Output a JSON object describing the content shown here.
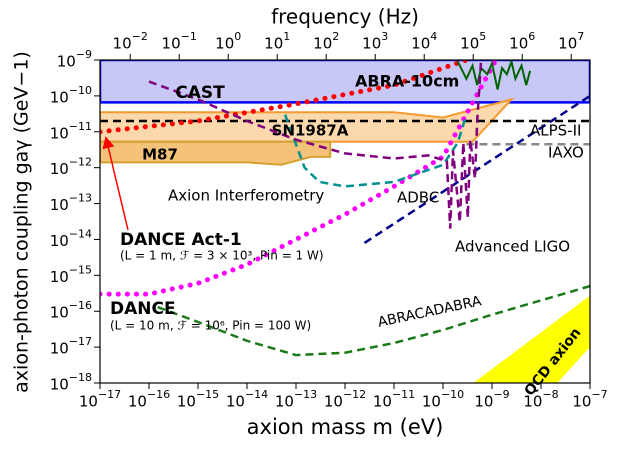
{
  "chart_data": {
    "type": "line",
    "xlabel": "axion mass m (eV)",
    "ylabel": "axion-photon coupling gaγ (GeV−1)",
    "x2label": "frequency (Hz)",
    "log": true,
    "xlim": [
      1e-17,
      1e-07
    ],
    "ylim": [
      1e-18,
      1e-09
    ],
    "x2lim": [
      0.002418,
      24180000.0
    ],
    "xticks": [
      {
        "value": 1e-17,
        "label": "10−17"
      },
      {
        "value": 1e-16,
        "label": "10−16"
      },
      {
        "value": 1e-15,
        "label": "10−15"
      },
      {
        "value": 1e-14,
        "label": "10−14"
      },
      {
        "value": 1e-13,
        "label": "10−13"
      },
      {
        "value": 1e-12,
        "label": "10−12"
      },
      {
        "value": 1e-11,
        "label": "10−11"
      },
      {
        "value": 1e-10,
        "label": "10−10"
      },
      {
        "value": 1e-09,
        "label": "10−9"
      },
      {
        "value": 1e-08,
        "label": "10−8"
      },
      {
        "value": 1e-07,
        "label": "10−7"
      }
    ],
    "yticks": [
      {
        "value": 1e-18,
        "label": "10−18"
      },
      {
        "value": 1e-17,
        "label": "10−17"
      },
      {
        "value": 1e-16,
        "label": "10−16"
      },
      {
        "value": 1e-15,
        "label": "10−15"
      },
      {
        "value": 1e-14,
        "label": "10−14"
      },
      {
        "value": 1e-13,
        "label": "10−13"
      },
      {
        "value": 1e-12,
        "label": "10−12"
      },
      {
        "value": 1e-11,
        "label": "10−11"
      },
      {
        "value": 1e-10,
        "label": "10−10"
      },
      {
        "value": 1e-09,
        "label": "10−9"
      }
    ],
    "x2ticks": [
      {
        "value": 0.01,
        "label": "10−2"
      },
      {
        "value": 0.1,
        "label": "10−1"
      },
      {
        "value": 1,
        "label": "100"
      },
      {
        "value": 10,
        "label": "101"
      },
      {
        "value": 100,
        "label": "102"
      },
      {
        "value": 1000,
        "label": "103"
      },
      {
        "value": 10000,
        "label": "104"
      },
      {
        "value": 100000,
        "label": "105"
      },
      {
        "value": 1000000,
        "label": "106"
      },
      {
        "value": 10000000,
        "label": "107"
      }
    ],
    "regions": [
      {
        "name": "CAST",
        "color": "#c8c8f6",
        "edge_color": "#0000ff",
        "x": [
          1e-17,
          1e-07,
          1e-07,
          1e-17
        ],
        "y": [
          6.6e-11,
          6.6e-11,
          1e-09,
          1e-09
        ]
      },
      {
        "name": "SN1987A",
        "color": "#fcd9ac",
        "edge_color": "#f59a30",
        "x": [
          1e-17,
          4e-10,
          2.5e-09,
          1e-10,
          1e-11,
          1e-17
        ],
        "y": [
          5.3e-12,
          5.3e-12,
          8e-11,
          2.5e-11,
          3.5e-11,
          3.5e-11
        ]
      },
      {
        "name": "M87",
        "color": "#f5c27a",
        "edge_color": "#d4a030",
        "x": [
          1e-17,
          1e-14,
          5e-14,
          2e-13,
          5e-13,
          5e-13,
          1e-17
        ],
        "y": [
          1.4e-12,
          1.4e-12,
          1.2e-12,
          2e-12,
          2e-12,
          5.3e-12,
          5.3e-12
        ]
      },
      {
        "name": "QCD axion",
        "color": "#ffff00",
        "edge_color": "#ffff00",
        "x": [
          4.5e-10,
          1e-07,
          1e-07,
          2e-08
        ],
        "y": [
          1e-18,
          2.5e-16,
          1.1e-17,
          1e-18
        ]
      }
    ],
    "series": [
      {
        "name": "ALPS-II",
        "color": "#000000",
        "style": "dashed",
        "linewidth": 2.5,
        "x": [
          1e-17,
          1e-07
        ],
        "y": [
          2e-11,
          2e-11
        ]
      },
      {
        "name": "IAXO",
        "color": "#888888",
        "style": "dashed",
        "linewidth": 2.5,
        "x": [
          3e-10,
          1e-07
        ],
        "y": [
          4.5e-12,
          4.5e-12
        ]
      },
      {
        "name": "DANCE Act-1",
        "color": "#ff0000",
        "style": "dotted",
        "linewidth": 5,
        "x": [
          1e-17,
          1e-15,
          1e-13,
          1e-11,
          3e-10
        ],
        "y": [
          1e-11,
          2e-11,
          6e-11,
          2e-10,
          1e-09
        ]
      },
      {
        "name": "DANCE",
        "color": "#ff00ff",
        "style": "dotted",
        "linewidth": 5,
        "x": [
          1e-17,
          1e-16,
          1e-15,
          1e-14,
          1e-13,
          1e-12,
          1e-11,
          1e-10,
          1.2e-09
        ],
        "y": [
          3e-16,
          3e-16,
          6e-16,
          2e-15,
          1e-14,
          5e-14,
          3e-13,
          2e-12,
          1e-09
        ]
      },
      {
        "name": "ABRA-10cm",
        "color": "#006400",
        "style": "solid",
        "linewidth": 2,
        "x": [
          2e-10,
          3e-10,
          4e-10,
          5e-10,
          6e-10,
          8e-10,
          1e-09,
          1.3e-09,
          1.6e-09,
          2e-09,
          2.5e-09,
          3e-09,
          4e-09,
          5e-09,
          6e-09
        ],
        "y": [
          9e-10,
          3e-10,
          7e-10,
          2e-10,
          6e-10,
          4e-10,
          8e-10,
          1.5e-10,
          6e-10,
          4e-10,
          9e-10,
          3e-10,
          7e-10,
          2e-10,
          5e-10
        ]
      },
      {
        "name": "ABRACADABRA",
        "color": "#1a7a1a",
        "style": "dashed",
        "linewidth": 2.5,
        "x": [
          1.5e-16,
          1e-15,
          1e-14,
          1e-13,
          1e-12,
          1e-11,
          1e-10,
          1e-09,
          1e-08,
          1e-07
        ],
        "y": [
          1.3e-16,
          5e-17,
          1.5e-17,
          6e-18,
          7e-18,
          1.3e-17,
          3e-17,
          8e-17,
          2e-16,
          5e-16
        ]
      },
      {
        "name": "Axion Interferometry",
        "color": "#009090",
        "style": "dashed",
        "linewidth": 2.5,
        "x": [
          6e-14,
          1.5e-13,
          3e-13,
          1e-12,
          1e-11,
          1e-10,
          2e-10,
          3e-10
        ],
        "y": [
          3e-11,
          1e-12,
          4e-13,
          3e-13,
          4e-13,
          1.2e-12,
          5e-12,
          3e-11
        ]
      },
      {
        "name": "ADBC",
        "color": "#00008b",
        "style": "dashed",
        "linewidth": 2.5,
        "x": [
          2.5e-12,
          1e-07
        ],
        "y": [
          8e-15,
          1e-10
        ]
      },
      {
        "name": "Advanced LIGO",
        "color": "#800080",
        "style": "dashed",
        "linewidth": 2.5,
        "x": [
          1e-16,
          1e-15,
          1e-14,
          1e-13,
          1e-12,
          1e-11,
          5e-11,
          1.2e-10,
          1.4e-10,
          1.6e-10,
          2.2e-10,
          2.6e-10,
          3.2e-10,
          3.6e-10,
          4.5e-10,
          5e-10,
          6e-10
        ],
        "y": [
          2.5e-10,
          8e-11,
          2e-11,
          6e-12,
          2.5e-12,
          1.8e-12,
          2.2e-12,
          1.5e-12,
          2e-14,
          3e-12,
          3e-14,
          5e-12,
          4e-14,
          6e-12,
          5e-13,
          2e-11,
          1e-09
        ]
      }
    ],
    "annotations": [
      {
        "text": "(L = 1 m, ℱ = 3 × 10³, Pin = 1 W)",
        "color": "#ff0000"
      },
      {
        "text": "(L = 10 m, ℱ = 10⁶, Pin = 100 W)",
        "color": "#ff00ff"
      }
    ]
  }
}
